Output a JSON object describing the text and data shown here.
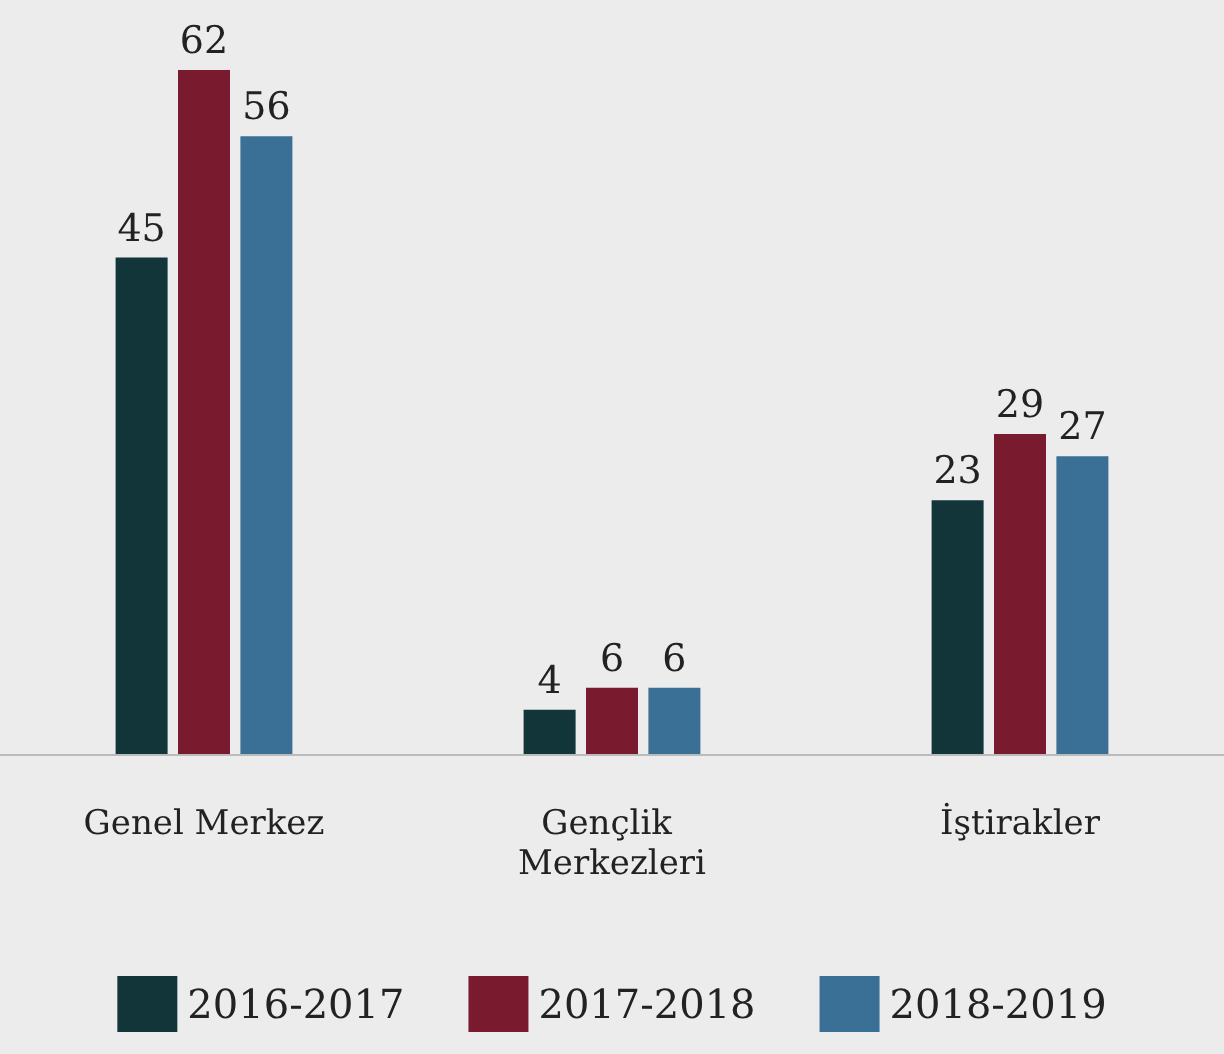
{
  "chart_data": {
    "type": "bar",
    "categories": [
      "Genel Merkez",
      "Gençlik Merkezleri",
      "İştirakler"
    ],
    "series": [
      {
        "name": "2016-2017",
        "color": "#12353a",
        "values": [
          45,
          4,
          23
        ]
      },
      {
        "name": "2017-2018",
        "color": "#7a1a2e",
        "values": [
          62,
          6,
          29
        ]
      },
      {
        "name": "2018-2019",
        "color": "#3a6f96",
        "values": [
          56,
          6,
          27
        ]
      }
    ],
    "data_labels": true,
    "legend": "bottom"
  }
}
